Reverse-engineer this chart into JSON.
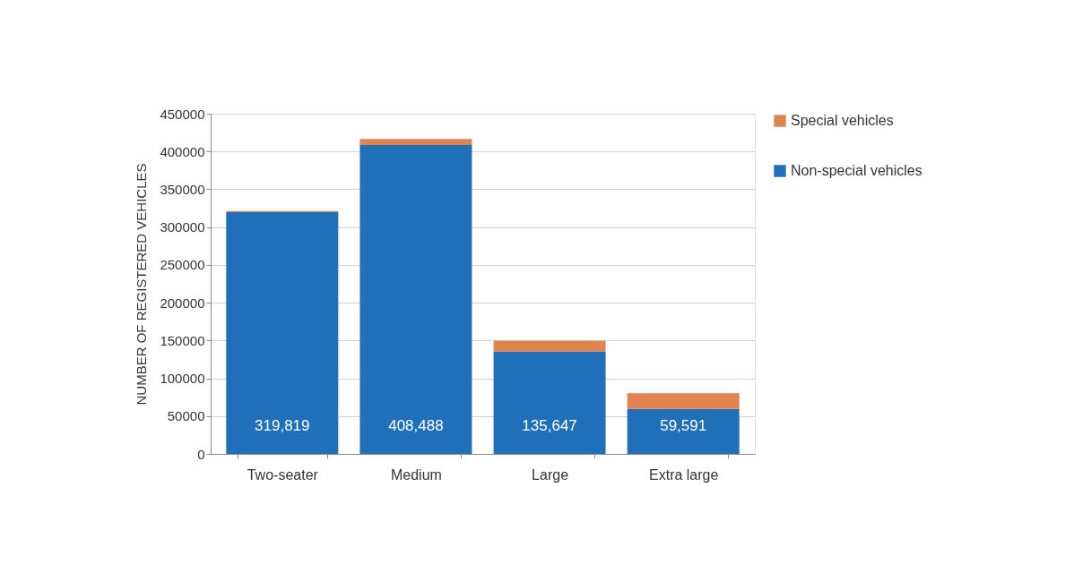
{
  "chart_data": {
    "type": "bar",
    "stacked": true,
    "ylabel": "NUMBER OF REGISTERED VEHICLES",
    "categories": [
      "Two-seater",
      "Medium",
      "Large",
      "Extra large"
    ],
    "series": [
      {
        "name": "Non-special vehicles",
        "color": "#1f70b8",
        "values": [
          319819,
          408488,
          135647,
          59591
        ],
        "value_labels": [
          "319,819",
          "408,488",
          "135,647",
          "59,591"
        ]
      },
      {
        "name": "Special vehicles",
        "color": "#e0834f",
        "values": [
          1500,
          8000,
          14000,
          20500
        ]
      }
    ],
    "ylim": [
      0,
      450000
    ],
    "yticks": [
      0,
      50000,
      100000,
      150000,
      200000,
      250000,
      300000,
      350000,
      400000,
      450000
    ],
    "grid": "y",
    "legend": "top right"
  }
}
